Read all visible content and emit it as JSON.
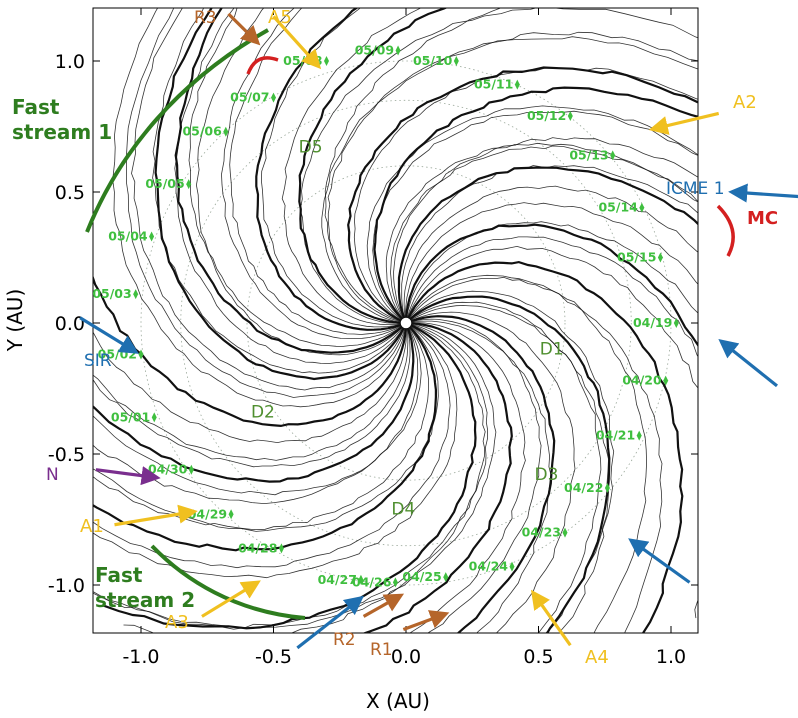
{
  "chart_data": {
    "type": "scatter",
    "xlabel": "X (AU)",
    "ylabel": "Y (AU)",
    "xlim": [
      -1.2,
      1.2
    ],
    "ylim": [
      -1.2,
      1.2
    ],
    "xticks": [
      -1.0,
      -0.5,
      0.0,
      0.5,
      1.0
    ],
    "yticks": [
      -1.0,
      -0.5,
      0.0,
      0.5,
      1.0
    ],
    "xtick_labels": [
      "-1.0",
      "-0.5",
      "0.0",
      "0.5",
      "1.0"
    ],
    "ytick_labels": [
      "-1.0",
      "-0.5",
      "0.0",
      "0.5",
      "1.0"
    ],
    "grid": false,
    "legend": "none",
    "colors": {
      "field_lines": "#111111",
      "dates": "#3fbf3f",
      "green_annotations": "#2e7d1f",
      "yellow_arrows": "#f0c020",
      "blue_arrows": "#1f6fb0",
      "brown_arrows": "#b5652a",
      "red_arcs": "#d42020",
      "purple_arrow": "#7a2e8e",
      "region_labels": "#4f8f2f"
    },
    "date_markers": [
      {
        "label": "05/09",
        "x": -0.03,
        "y": 1.04
      },
      {
        "label": "05/10",
        "x": 0.19,
        "y": 1.0
      },
      {
        "label": "05/08",
        "x": -0.3,
        "y": 1.0
      },
      {
        "label": "05/11",
        "x": 0.42,
        "y": 0.91
      },
      {
        "label": "05/07",
        "x": -0.5,
        "y": 0.86
      },
      {
        "label": "05/12",
        "x": 0.62,
        "y": 0.79
      },
      {
        "label": "05/06",
        "x": -0.68,
        "y": 0.73
      },
      {
        "label": "05/13",
        "x": 0.78,
        "y": 0.64
      },
      {
        "label": "05/05",
        "x": -0.82,
        "y": 0.53
      },
      {
        "label": "05/14",
        "x": 0.89,
        "y": 0.44
      },
      {
        "label": "05/04",
        "x": -0.96,
        "y": 0.33
      },
      {
        "label": "05/15",
        "x": 0.96,
        "y": 0.25
      },
      {
        "label": "05/03",
        "x": -1.02,
        "y": 0.11
      },
      {
        "label": "04/19",
        "x": 1.02,
        "y": 0.0
      },
      {
        "label": "05/02",
        "x": -1.0,
        "y": -0.12
      },
      {
        "label": "04/20",
        "x": 0.98,
        "y": -0.22
      },
      {
        "label": "05/01",
        "x": -0.95,
        "y": -0.36
      },
      {
        "label": "04/21",
        "x": 0.88,
        "y": -0.43
      },
      {
        "label": "04/30",
        "x": -0.81,
        "y": -0.56
      },
      {
        "label": "04/22",
        "x": 0.76,
        "y": -0.63
      },
      {
        "label": "04/29",
        "x": -0.66,
        "y": -0.73
      },
      {
        "label": "04/23",
        "x": 0.6,
        "y": -0.8
      },
      {
        "label": "04/28",
        "x": -0.47,
        "y": -0.86
      },
      {
        "label": "04/24",
        "x": 0.4,
        "y": -0.93
      },
      {
        "label": "04/27",
        "x": -0.17,
        "y": -0.98
      },
      {
        "label": "04/26",
        "x": -0.04,
        "y": -0.99
      },
      {
        "label": "04/25",
        "x": 0.15,
        "y": -0.97
      }
    ],
    "region_labels": [
      {
        "label": "D1",
        "x": 0.55,
        "y": -0.12
      },
      {
        "label": "D2",
        "x": -0.54,
        "y": -0.36
      },
      {
        "label": "D3",
        "x": 0.53,
        "y": -0.6
      },
      {
        "label": "D4",
        "x": -0.01,
        "y": -0.73
      },
      {
        "label": "D5",
        "x": -0.36,
        "y": 0.65
      }
    ],
    "annotations": [
      {
        "label": "A1",
        "color": "yellow",
        "arrow_from": [
          -1.1,
          -0.77
        ],
        "arrow_to": [
          -0.8,
          -0.72
        ]
      },
      {
        "label": "A2",
        "color": "yellow",
        "arrow_from": [
          1.18,
          0.8
        ],
        "arrow_to": [
          0.93,
          0.74
        ]
      },
      {
        "label": "A3",
        "color": "yellow",
        "arrow_from": [
          -0.77,
          -1.12
        ],
        "arrow_to": [
          -0.56,
          -0.99
        ]
      },
      {
        "label": "A4",
        "color": "yellow",
        "arrow_from": [
          0.62,
          -1.23
        ],
        "arrow_to": [
          0.48,
          -1.03
        ]
      },
      {
        "label": "A5",
        "color": "yellow",
        "arrow_from": [
          -0.5,
          1.17
        ],
        "arrow_to": [
          -0.33,
          0.98
        ]
      },
      {
        "label": "R1",
        "color": "brown",
        "arrow_from": [
          -0.01,
          -1.17
        ],
        "arrow_to": [
          0.15,
          -1.11
        ]
      },
      {
        "label": "R2",
        "color": "brown",
        "arrow_from": [
          -0.16,
          -1.12
        ],
        "arrow_to": [
          -0.02,
          -1.04
        ]
      },
      {
        "label": "R3",
        "color": "brown",
        "arrow_from": [
          -0.67,
          1.18
        ],
        "arrow_to": [
          -0.56,
          1.07
        ]
      },
      {
        "label": "SIR",
        "color": "blue",
        "arrow_from": [
          -1.23,
          0.02
        ],
        "arrow_to": [
          -1.02,
          -0.11
        ]
      },
      {
        "label": "ICME 1",
        "color": "blue",
        "arrow_from": [
          1.52,
          0.48
        ],
        "arrow_to": [
          1.23,
          0.5
        ]
      },
      {
        "label": "",
        "color": "blue",
        "arrow_from": [
          1.4,
          -0.24
        ],
        "arrow_to": [
          1.19,
          -0.07
        ]
      },
      {
        "label": "",
        "color": "blue",
        "arrow_from": [
          1.07,
          -0.99
        ],
        "arrow_to": [
          0.85,
          -0.83
        ]
      },
      {
        "label": "",
        "color": "blue",
        "arrow_from": [
          -0.41,
          -1.24
        ],
        "arrow_to": [
          -0.17,
          -1.05
        ]
      },
      {
        "label": "N",
        "color": "purple",
        "arrow_from": [
          -1.17,
          -0.56
        ],
        "arrow_to": [
          -0.94,
          -0.59
        ]
      },
      {
        "label": "MC",
        "color": "red"
      },
      {
        "label": "Fast\nstream 1",
        "color": "green"
      },
      {
        "label": "Fast\nstream 2",
        "color": "green"
      }
    ]
  }
}
